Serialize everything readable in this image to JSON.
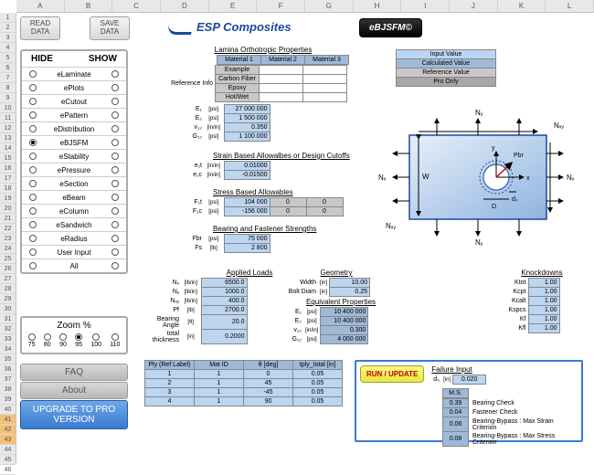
{
  "columns": [
    "A",
    "B",
    "C",
    "D",
    "E",
    "F",
    "G",
    "H",
    "I",
    "J",
    "K",
    "L"
  ],
  "buttons": {
    "read": "READ\nDATA",
    "save": "SAVE\nDATA",
    "ebjsfm": "eBJSFM©",
    "faq": "FAQ",
    "about": "About",
    "upgrade": "UPGRADE TO PRO VERSION",
    "run": "RUN / UPDATE"
  },
  "logo": "ESP Composites",
  "hideShow": {
    "hide": "HIDE",
    "show": "SHOW",
    "items": [
      "eLaminate",
      "ePlots",
      "eCutout",
      "ePattern",
      "eDistribution",
      "eBJSFM",
      "eStability",
      "ePressure",
      "eSection",
      "eBeam",
      "eColumn",
      "eSandwich",
      "eRadius",
      "User Input",
      "All"
    ]
  },
  "zoom": {
    "title": "Zoom %",
    "vals": [
      "75",
      "80",
      "90",
      "95",
      "100",
      "110"
    ]
  },
  "legend": {
    "input": "Input Value",
    "calc": "Calculated Value",
    "ref": "Reference Value",
    "pro": "Pro Only"
  },
  "lamina": {
    "title": "Lamina Orthotropic Properties",
    "cols": [
      "Material 1",
      "Material 2",
      "Material 3"
    ],
    "refinfo": "Reference Info",
    "ref_rows": [
      "Example",
      "Carbon Fiber",
      "Epoxy",
      "Hot/Wet"
    ],
    "rows": [
      {
        "l": "E₁",
        "u": "[psi]",
        "v": "27 000 000"
      },
      {
        "l": "E₂",
        "u": "[psi]",
        "v": "1 500 000"
      },
      {
        "l": "v₁₂",
        "u": "[in/in]",
        "v": "0.350"
      },
      {
        "l": "G₁₂",
        "u": "[psi]",
        "v": "1 100 000"
      }
    ]
  },
  "strain": {
    "title": "Strain Based Allowalbes or Design Cutoffs",
    "rows": [
      {
        "l": "e₁t",
        "u": "[in/in]",
        "v": "0.01000"
      },
      {
        "l": "e₁c",
        "u": "[in/in]",
        "v": "-0.01500"
      }
    ]
  },
  "stress": {
    "title": "Stress Based Allowables",
    "rows": [
      {
        "l": "F₁t",
        "u": "[psi]",
        "v": "104 000",
        "v2": "0",
        "v3": "0"
      },
      {
        "l": "F₁c",
        "u": "[psi]",
        "v": "-156 000",
        "v2": "0",
        "v3": "0"
      }
    ]
  },
  "bearing": {
    "title": "Bearing and Fastener Strengths",
    "rows": [
      {
        "l": "Fbr",
        "u": "[psi]",
        "v": "75 000"
      },
      {
        "l": "Fs",
        "u": "[lb]",
        "v": "2 800"
      }
    ]
  },
  "applied": {
    "title": "Applied Loads",
    "rows": [
      {
        "l": "Nₓ",
        "u": "[lb/in]",
        "v": "6500.0"
      },
      {
        "l": "Nᵧ",
        "u": "[lb/in]",
        "v": "1000.0"
      },
      {
        "l": "Nₓᵧ",
        "u": "[lb/in]",
        "v": "400.0"
      },
      {
        "l": "Pf",
        "u": "[lb]",
        "v": "2700.0"
      },
      {
        "l": "Bearing Angle",
        "u": "[θ]",
        "v": "20.0"
      },
      {
        "l": "total thickness",
        "u": "[in]",
        "v": "0.2000"
      }
    ]
  },
  "geometry": {
    "title": "Geometry",
    "rows": [
      {
        "l": "Width",
        "u": "[in]",
        "v": "10.00"
      },
      {
        "l": "Bolt Diam",
        "u": "[in]",
        "v": "0.25"
      }
    ]
  },
  "equiv": {
    "title": "Equivalent Properties",
    "rows": [
      {
        "l": "E₁",
        "u": "[psi]",
        "v": "10 400 000"
      },
      {
        "l": "E₂",
        "u": "[psi]",
        "v": "10 400 000"
      },
      {
        "l": "v₁₂",
        "u": "[in/in]",
        "v": "0.300"
      },
      {
        "l": "G₁₂",
        "u": "[psi]",
        "v": "4 000 000"
      }
    ]
  },
  "knock": {
    "title": "Knockdowns",
    "rows": [
      {
        "l": "Ktot",
        "v": "1.00"
      },
      {
        "l": "Kcpt",
        "v": "1.00"
      },
      {
        "l": "Kcalt",
        "v": "1.00"
      },
      {
        "l": "Kspcs",
        "v": "1.00"
      },
      {
        "l": "Kf",
        "v": "1.00"
      },
      {
        "l": "Kfl",
        "v": "1.00"
      }
    ]
  },
  "ply": {
    "headers": [
      "Ply (Ref Label)",
      "Mat ID",
      "θ [deg]",
      "tply_total [in]"
    ],
    "rows": [
      [
        "1",
        "1",
        "0",
        "0.05"
      ],
      [
        "2",
        "1",
        "45",
        "0.05"
      ],
      [
        "3",
        "1",
        "-45",
        "0.05"
      ],
      [
        "4",
        "1",
        "90",
        "0.05"
      ]
    ]
  },
  "failure": {
    "title": "Failure Input",
    "d0": {
      "l": "d₀",
      "u": "[in]",
      "v": "0.020"
    },
    "ms_title": "M.S.",
    "rows": [
      {
        "v": "0.39",
        "l": "Bearing Check"
      },
      {
        "v": "0.04",
        "l": "Fastener Check"
      },
      {
        "v": "0.06",
        "l": "Bearing-Bypass : Max Strain Criterion"
      },
      {
        "v": "0.08",
        "l": "Bearing-Bypass : Max Stress Criterion"
      }
    ]
  },
  "diagram_labels": {
    "Ny": "Nᵧ",
    "Nx": "Nₓ",
    "Nxy": "Nₓᵧ",
    "Pbr": "Pbr",
    "D": "D",
    "d0": "d₀",
    "W": "W",
    "x": "x",
    "y": "y"
  }
}
